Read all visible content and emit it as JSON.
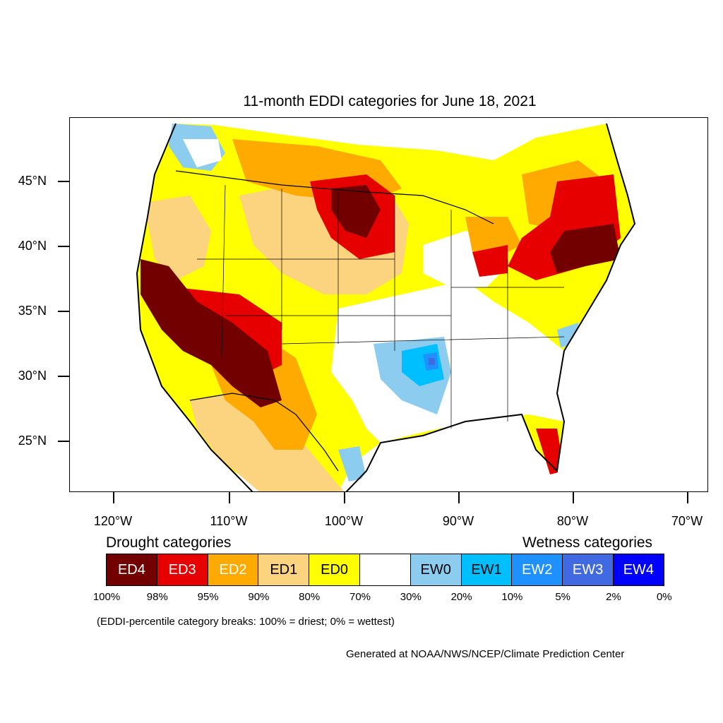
{
  "title": "11-month EDDI categories for June 18, 2021",
  "lat_labels": [
    "45°N",
    "40°N",
    "35°N",
    "30°N",
    "25°N"
  ],
  "lon_labels": [
    "120°W",
    "110°W",
    "100°W",
    "90°W",
    "80°W",
    "70°W"
  ],
  "legend": {
    "drought_heading": "Drought categories",
    "wetness_heading": "Wetness categories",
    "categories": [
      {
        "label": "ED4",
        "color": "#730000",
        "text_color": "#ffffff"
      },
      {
        "label": "ED3",
        "color": "#e60000",
        "text_color": "#ffffff"
      },
      {
        "label": "ED2",
        "color": "#ffaa00",
        "text_color": "#ffffff"
      },
      {
        "label": "ED1",
        "color": "#fcd37f",
        "text_color": "#000000"
      },
      {
        "label": "ED0",
        "color": "#ffff00",
        "text_color": "#000000"
      },
      {
        "label": "",
        "color": "#ffffff",
        "text_color": "#000000"
      },
      {
        "label": "EW0",
        "color": "#8ccdef",
        "text_color": "#000000"
      },
      {
        "label": "EW1",
        "color": "#00bfff",
        "text_color": "#000000"
      },
      {
        "label": "EW2",
        "color": "#1e90ff",
        "text_color": "#ffffff"
      },
      {
        "label": "EW3",
        "color": "#4169e1",
        "text_color": "#ffffff"
      },
      {
        "label": "EW4",
        "color": "#0000ff",
        "text_color": "#ffffff"
      }
    ],
    "breaks": [
      "100%",
      "98%",
      "95%",
      "90%",
      "80%",
      "70%",
      "30%",
      "20%",
      "10%",
      "5%",
      "2%",
      "0%"
    ]
  },
  "note": "(EDDI-percentile category breaks: 100% = driest; 0% = wettest)",
  "credit": "Generated at NOAA/NWS/NCEP/Climate Prediction Center"
}
